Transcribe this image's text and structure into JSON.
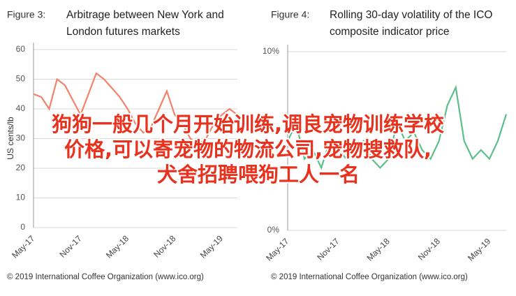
{
  "chart_data": [
    {
      "type": "line",
      "figure": "Figure 3:",
      "title": [
        "Arbitrage between New York and",
        "London futures markets"
      ],
      "ylabel": "US cents/lb",
      "source": "© 2019 International Coffee Organization (www.ico.org)",
      "categories": [
        "May-17",
        null,
        null,
        null,
        null,
        null,
        "Nov-17",
        null,
        null,
        null,
        null,
        null,
        "May-18",
        null,
        null,
        null,
        null,
        null,
        "Nov-18",
        null,
        null,
        null,
        null,
        null,
        "May-19",
        null,
        null
      ],
      "series": [
        {
          "color": "#f2826a",
          "values": [
            45,
            44,
            40,
            50,
            48,
            43,
            38,
            45,
            52,
            50,
            47,
            44,
            40,
            35,
            32,
            34,
            40,
            46,
            38,
            35,
            30,
            28,
            30,
            35,
            38,
            40,
            38
          ]
        }
      ],
      "ylim": [
        0,
        60
      ],
      "yticks": [
        0,
        10,
        20,
        30,
        40,
        50,
        60
      ],
      "grid": true
    },
    {
      "type": "line",
      "figure": "Figure 4:",
      "title": [
        "Rolling 30-day volatility of the ICO",
        "composite indicator price"
      ],
      "source": "© 2019 International Coffee Organization (www.ico.org)",
      "categories": [
        "May-17",
        null,
        null,
        null,
        null,
        null,
        "Nov-17",
        null,
        null,
        null,
        null,
        null,
        "May-18",
        null,
        null,
        null,
        null,
        null,
        "Nov-18",
        null,
        null,
        null,
        null,
        null,
        "May-19",
        null,
        null
      ],
      "series": [
        {
          "color": "#5cbf8a",
          "values": [
            5,
            6,
            4,
            4.5,
            3.5,
            5,
            4.5,
            4,
            4.5,
            5,
            4,
            3.5,
            4,
            6,
            5,
            5.5,
            4.5,
            4,
            5,
            7,
            8,
            5,
            4,
            4.5,
            4,
            5,
            6.5
          ]
        }
      ],
      "ylim": [
        0,
        10
      ],
      "yticks": [
        {
          "value": 0,
          "label": "0%"
        },
        {
          "value": 10,
          "label": "10%"
        }
      ],
      "grid": true
    }
  ],
  "overlay": [
    "狗狗一般几个月开始训练,调良宠物训练学校",
    "价格,可以寄宠物的物流公司,宠物搜救队,",
    "犬舍招聘喂狗工人一名"
  ]
}
